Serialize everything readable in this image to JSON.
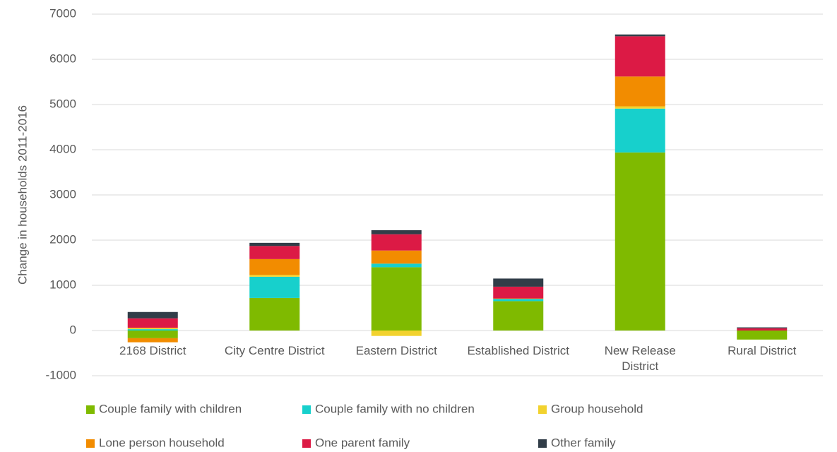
{
  "chart_data": {
    "type": "stacked_bar",
    "y_label": "Change in households 2011-2016",
    "categories": [
      "2168 District",
      "City Centre District",
      "Eastern District",
      "Established District",
      "New Release District",
      "Rural District"
    ],
    "series": [
      {
        "name": "Couple family with children",
        "color": "#7fba00",
        "values": [
          -170,
          720,
          1400,
          650,
          3940,
          -200
        ]
      },
      {
        "name": "Couple family with no children",
        "color": "#17d0cc",
        "values": [
          30,
          470,
          80,
          50,
          970,
          0
        ]
      },
      {
        "name": "Group household",
        "color": "#f2d22e",
        "values": [
          30,
          40,
          -120,
          0,
          50,
          0
        ]
      },
      {
        "name": "Lone person household",
        "color": "#f28c00",
        "values": [
          -90,
          350,
          290,
          10,
          660,
          0
        ]
      },
      {
        "name": "One parent family",
        "color": "#dc1a45",
        "values": [
          210,
          290,
          360,
          260,
          890,
          50
        ]
      },
      {
        "name": "Other family",
        "color": "#313d48",
        "values": [
          140,
          70,
          90,
          180,
          40,
          20
        ]
      }
    ],
    "ylim": [
      -1000,
      7000
    ],
    "yticks": [
      -1000,
      0,
      1000,
      2000,
      3000,
      4000,
      5000,
      6000,
      7000
    ],
    "grid": true
  }
}
